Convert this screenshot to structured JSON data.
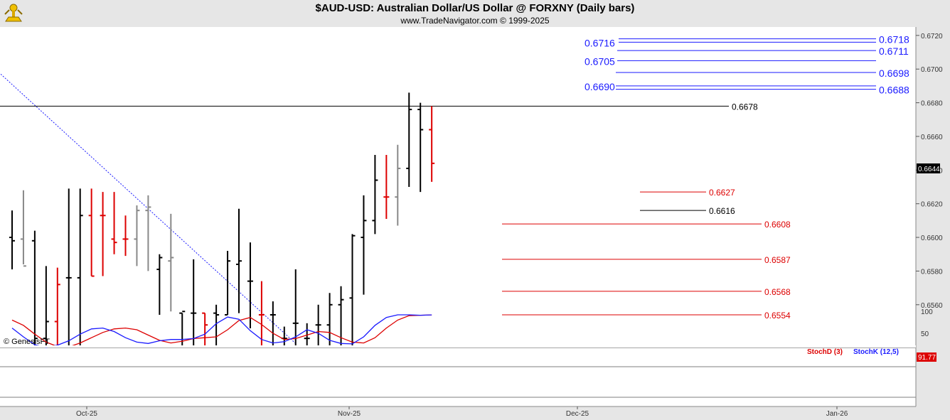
{
  "header": {
    "title": "$AUD-USD:  Australian Dollar/US Dollar @ FORXNY  (Daily bars)",
    "subtitle": "www.TradeNavigator.com © 1999-2025"
  },
  "watermark": "© GenesisFT",
  "colors": {
    "up_bar": "#000000",
    "down_bar": "#dd0000",
    "inside_bar": "#888888",
    "level_blue": "#1a1aff",
    "level_red": "#dd0000",
    "stoch_d": "#dd0000",
    "stoch_k": "#1a1aff",
    "trendline": "#1a1aff"
  },
  "chart_data": [
    {
      "type": "ohlc",
      "title": "$AUD-USD:  Australian Dollar/US Dollar @ FORXNY  (Daily bars)",
      "ylim": [
        0.6535,
        0.6725
      ],
      "y_ticks": [
        "0.6720",
        "0.6700",
        "0.6680",
        "0.6660",
        "0.6640",
        "0.6620",
        "0.6600",
        "0.6580",
        "0.6560"
      ],
      "x_ticks": [
        "Oct-25",
        "Nov-25",
        "Dec-25",
        "Jan-26"
      ],
      "last_price": "0.6644",
      "bars": [
        {
          "o": 0.66,
          "h": 0.6616,
          "l": 0.6581,
          "c": 0.6598,
          "color": "up"
        },
        {
          "o": 0.6599,
          "h": 0.6628,
          "l": 0.6584,
          "c": 0.6583,
          "color": "inside"
        },
        {
          "o": 0.6598,
          "h": 0.6604,
          "l": 0.653,
          "c": 0.654,
          "color": "up"
        },
        {
          "o": 0.654,
          "h": 0.6583,
          "l": 0.6535,
          "c": 0.655,
          "color": "up"
        },
        {
          "o": 0.655,
          "h": 0.6582,
          "l": 0.6535,
          "c": 0.6572,
          "color": "down"
        },
        {
          "o": 0.6576,
          "h": 0.6629,
          "l": 0.6535,
          "c": 0.6576,
          "color": "up"
        },
        {
          "o": 0.6576,
          "h": 0.6629,
          "l": 0.6535,
          "c": 0.6613,
          "color": "up"
        },
        {
          "o": 0.6613,
          "h": 0.6629,
          "l": 0.6577,
          "c": 0.6577,
          "color": "down"
        },
        {
          "o": 0.6613,
          "h": 0.6627,
          "l": 0.6577,
          "c": 0.6613,
          "color": "down"
        },
        {
          "o": 0.6599,
          "h": 0.6627,
          "l": 0.659,
          "c": 0.6597,
          "color": "down"
        },
        {
          "o": 0.6599,
          "h": 0.6613,
          "l": 0.6589,
          "c": 0.6599,
          "color": "down"
        },
        {
          "o": 0.6599,
          "h": 0.6619,
          "l": 0.6583,
          "c": 0.6616,
          "color": "inside"
        },
        {
          "o": 0.6616,
          "h": 0.6625,
          "l": 0.658,
          "c": 0.6618,
          "color": "inside"
        },
        {
          "o": 0.6581,
          "h": 0.659,
          "l": 0.6554,
          "c": 0.6588,
          "color": "up"
        },
        {
          "o": 0.6586,
          "h": 0.6614,
          "l": 0.6556,
          "c": 0.6588,
          "color": "inside"
        },
        {
          "o": 0.6555,
          "h": 0.6555,
          "l": 0.6535,
          "c": 0.6556,
          "color": "up"
        },
        {
          "o": 0.6555,
          "h": 0.6587,
          "l": 0.6535,
          "c": 0.6555,
          "color": "up"
        },
        {
          "o": 0.6555,
          "h": 0.6555,
          "l": 0.6535,
          "c": 0.6548,
          "color": "down"
        },
        {
          "o": 0.6555,
          "h": 0.656,
          "l": 0.6535,
          "c": 0.6554,
          "color": "up"
        },
        {
          "o": 0.6554,
          "h": 0.6592,
          "l": 0.6554,
          "c": 0.6586,
          "color": "up"
        },
        {
          "o": 0.6584,
          "h": 0.6617,
          "l": 0.6555,
          "c": 0.6586,
          "color": "up"
        },
        {
          "o": 0.6574,
          "h": 0.6597,
          "l": 0.6546,
          "c": 0.6574,
          "color": "up"
        },
        {
          "o": 0.6554,
          "h": 0.6574,
          "l": 0.6535,
          "c": 0.6554,
          "color": "down"
        },
        {
          "o": 0.6554,
          "h": 0.6562,
          "l": 0.6535,
          "c": 0.6554,
          "color": "up"
        },
        {
          "o": 0.654,
          "h": 0.6547,
          "l": 0.6535,
          "c": 0.654,
          "color": "up"
        },
        {
          "o": 0.6549,
          "h": 0.6581,
          "l": 0.6535,
          "c": 0.6549,
          "color": "up"
        },
        {
          "o": 0.654,
          "h": 0.6549,
          "l": 0.6535,
          "c": 0.654,
          "color": "up"
        },
        {
          "o": 0.6548,
          "h": 0.656,
          "l": 0.6535,
          "c": 0.6548,
          "color": "up"
        },
        {
          "o": 0.6548,
          "h": 0.6567,
          "l": 0.6535,
          "c": 0.656,
          "color": "up"
        },
        {
          "o": 0.656,
          "h": 0.6571,
          "l": 0.6535,
          "c": 0.6563,
          "color": "up"
        },
        {
          "o": 0.6564,
          "h": 0.6602,
          "l": 0.6535,
          "c": 0.6601,
          "color": "up"
        },
        {
          "o": 0.66,
          "h": 0.6625,
          "l": 0.6566,
          "c": 0.661,
          "color": "up"
        },
        {
          "o": 0.661,
          "h": 0.6649,
          "l": 0.6602,
          "c": 0.6634,
          "color": "up"
        },
        {
          "o": 0.6624,
          "h": 0.6649,
          "l": 0.6611,
          "c": 0.6624,
          "color": "down"
        },
        {
          "o": 0.6624,
          "h": 0.6655,
          "l": 0.6607,
          "c": 0.6641,
          "color": "inside"
        },
        {
          "o": 0.6641,
          "h": 0.6686,
          "l": 0.663,
          "c": 0.6676,
          "color": "up"
        },
        {
          "o": 0.6676,
          "h": 0.668,
          "l": 0.6627,
          "c": 0.6664,
          "color": "up"
        },
        {
          "o": 0.6664,
          "h": 0.6678,
          "l": 0.6633,
          "c": 0.6644,
          "color": "down"
        }
      ],
      "levels": [
        {
          "value": 0.6718,
          "label": "0.6718",
          "color": "blue",
          "side": "right"
        },
        {
          "value": 0.6716,
          "label": "0.6716",
          "color": "blue",
          "side": "left"
        },
        {
          "value": 0.6711,
          "label": "0.6711",
          "color": "blue",
          "side": "right"
        },
        {
          "value": 0.6705,
          "label": "0.6705",
          "color": "blue",
          "side": "left"
        },
        {
          "value": 0.6698,
          "label": "0.6698",
          "color": "blue",
          "side": "right"
        },
        {
          "value": 0.669,
          "label": "0.6690",
          "color": "blue",
          "side": "left"
        },
        {
          "value": 0.6688,
          "label": "0.6688",
          "color": "blue",
          "side": "right"
        },
        {
          "value": 0.6678,
          "label": "0.6678",
          "color": "black",
          "side": "right"
        },
        {
          "value": 0.6627,
          "label": "0.6627",
          "color": "red",
          "side": "right"
        },
        {
          "value": 0.6616,
          "label": "0.6616",
          "color": "black",
          "side": "right"
        },
        {
          "value": 0.6608,
          "label": "0.6608",
          "color": "red",
          "side": "right"
        },
        {
          "value": 0.6587,
          "label": "0.6587",
          "color": "red",
          "side": "right"
        },
        {
          "value": 0.6568,
          "label": "0.6568",
          "color": "red",
          "side": "right"
        },
        {
          "value": 0.6554,
          "label": "0.6554",
          "color": "red",
          "side": "right"
        }
      ],
      "trendline": {
        "start_bar": -1,
        "start_value": 0.6697,
        "end_bar": 25,
        "end_value": 0.6537
      }
    },
    {
      "type": "line",
      "title": "",
      "ylim": [
        0,
        100
      ],
      "y_ticks": [
        "100",
        "50"
      ],
      "last_value": "91.77",
      "series": [
        {
          "name": "StochD (3)",
          "color": "#dd0000",
          "values": [
            80,
            68,
            48,
            30,
            20,
            19,
            28,
            40,
            52,
            60,
            62,
            58,
            46,
            34,
            28,
            32,
            38,
            40,
            42,
            58,
            79,
            86,
            70,
            50,
            36,
            38,
            46,
            54,
            52,
            40,
            30,
            28,
            40,
            62,
            80,
            90,
            91,
            91.77
          ]
        },
        {
          "name": "StochK (12,5)",
          "color": "#1a1aff",
          "values": [
            62,
            42,
            24,
            18,
            23,
            33,
            48,
            60,
            62,
            54,
            40,
            30,
            27,
            33,
            36,
            36,
            38,
            48,
            72,
            87,
            82,
            56,
            36,
            28,
            31,
            42,
            58,
            50,
            34,
            27,
            26,
            42,
            68,
            86,
            92,
            92,
            91,
            91.77
          ]
        }
      ]
    }
  ]
}
